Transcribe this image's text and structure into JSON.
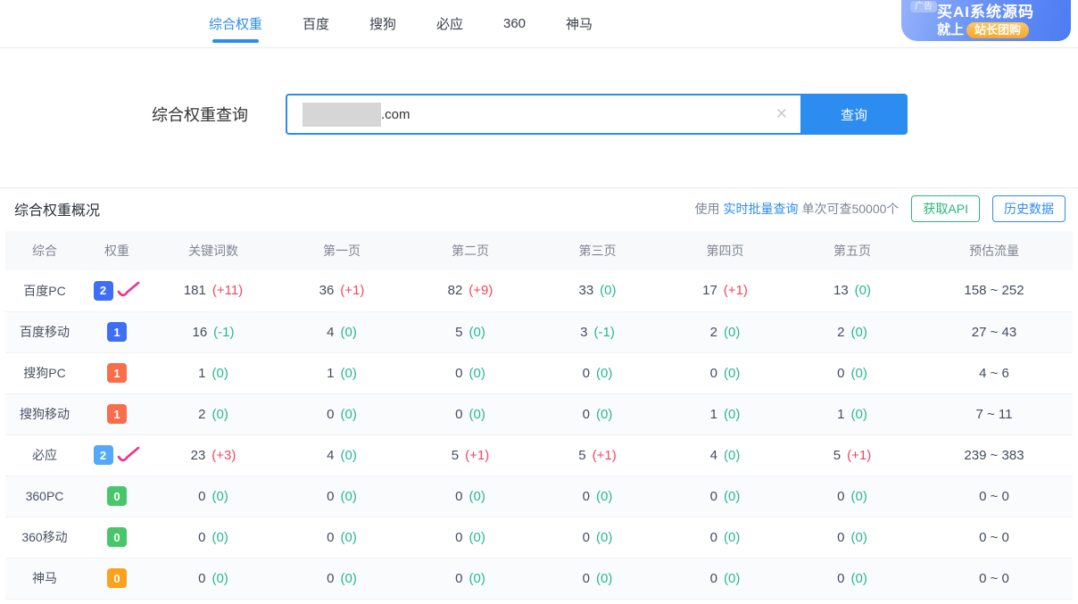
{
  "nav": {
    "tabs": [
      {
        "label": "综合权重",
        "active": true
      },
      {
        "label": "百度",
        "active": false
      },
      {
        "label": "搜狗",
        "active": false
      },
      {
        "label": "必应",
        "active": false
      },
      {
        "label": "360",
        "active": false
      },
      {
        "label": "神马",
        "active": false
      }
    ]
  },
  "banner": {
    "ad_tag": "广告",
    "line1": "买AI系统源码",
    "line2_prefix": "就上",
    "line2_pill": "站长团购"
  },
  "search": {
    "label": "综合权重查询",
    "domain_text": ".com",
    "clear_icon": "✕",
    "button_label": "查询"
  },
  "overview": {
    "title": "综合权重概况",
    "usage_prefix": "使用",
    "usage_link": "实时批量查询",
    "usage_suffix": "单次可查50000个",
    "api_button": "获取API",
    "history_button": "历史数据"
  },
  "table": {
    "headers": [
      "综合",
      "权重",
      "关键词数",
      "第一页",
      "第二页",
      "第三页",
      "第四页",
      "第五页",
      "预估流量"
    ],
    "rows": [
      {
        "name": "百度PC",
        "weight": "2",
        "badge_color": "#3e6ef5",
        "trend": true,
        "cells": [
          [
            "181",
            "(+11)"
          ],
          [
            "36",
            "(+1)"
          ],
          [
            "82",
            "(+9)"
          ],
          [
            "33",
            "(0)"
          ],
          [
            "17",
            "(+1)"
          ],
          [
            "13",
            "(0)"
          ]
        ],
        "traffic": "158 ~ 252"
      },
      {
        "name": "百度移动",
        "weight": "1",
        "badge_color": "#3e6ef5",
        "trend": false,
        "cells": [
          [
            "16",
            "(-1)"
          ],
          [
            "4",
            "(0)"
          ],
          [
            "5",
            "(0)"
          ],
          [
            "3",
            "(-1)"
          ],
          [
            "2",
            "(0)"
          ],
          [
            "2",
            "(0)"
          ]
        ],
        "traffic": "27 ~ 43"
      },
      {
        "name": "搜狗PC",
        "weight": "1",
        "badge_color": "#f96d4a",
        "trend": false,
        "cells": [
          [
            "1",
            "(0)"
          ],
          [
            "1",
            "(0)"
          ],
          [
            "0",
            "(0)"
          ],
          [
            "0",
            "(0)"
          ],
          [
            "0",
            "(0)"
          ],
          [
            "0",
            "(0)"
          ]
        ],
        "traffic": "4 ~ 6"
      },
      {
        "name": "搜狗移动",
        "weight": "1",
        "badge_color": "#f96d4a",
        "trend": false,
        "cells": [
          [
            "2",
            "(0)"
          ],
          [
            "0",
            "(0)"
          ],
          [
            "0",
            "(0)"
          ],
          [
            "0",
            "(0)"
          ],
          [
            "1",
            "(0)"
          ],
          [
            "1",
            "(0)"
          ]
        ],
        "traffic": "7 ~ 11"
      },
      {
        "name": "必应",
        "weight": "2",
        "badge_color": "#55a9f8",
        "trend": true,
        "cells": [
          [
            "23",
            "(+3)"
          ],
          [
            "4",
            "(0)"
          ],
          [
            "5",
            "(+1)"
          ],
          [
            "5",
            "(+1)"
          ],
          [
            "4",
            "(0)"
          ],
          [
            "5",
            "(+1)"
          ]
        ],
        "traffic": "239 ~ 383"
      },
      {
        "name": "360PC",
        "weight": "0",
        "badge_color": "#47c769",
        "trend": false,
        "cells": [
          [
            "0",
            "(0)"
          ],
          [
            "0",
            "(0)"
          ],
          [
            "0",
            "(0)"
          ],
          [
            "0",
            "(0)"
          ],
          [
            "0",
            "(0)"
          ],
          [
            "0",
            "(0)"
          ]
        ],
        "traffic": "0 ~ 0"
      },
      {
        "name": "360移动",
        "weight": "0",
        "badge_color": "#47c769",
        "trend": false,
        "cells": [
          [
            "0",
            "(0)"
          ],
          [
            "0",
            "(0)"
          ],
          [
            "0",
            "(0)"
          ],
          [
            "0",
            "(0)"
          ],
          [
            "0",
            "(0)"
          ],
          [
            "0",
            "(0)"
          ]
        ],
        "traffic": "0 ~ 0"
      },
      {
        "name": "神马",
        "weight": "0",
        "badge_color": "#faa21e",
        "trend": false,
        "cells": [
          [
            "0",
            "(0)"
          ],
          [
            "0",
            "(0)"
          ],
          [
            "0",
            "(0)"
          ],
          [
            "0",
            "(0)"
          ],
          [
            "0",
            "(0)"
          ],
          [
            "0",
            "(0)"
          ]
        ],
        "traffic": "0 ~ 0"
      }
    ]
  },
  "colors": {
    "accent": "#2d8cf0",
    "delta_up": "#f5455c",
    "delta_zero": "#27b792",
    "trend_icon": "#f0338d",
    "api_green": "#27b877"
  }
}
